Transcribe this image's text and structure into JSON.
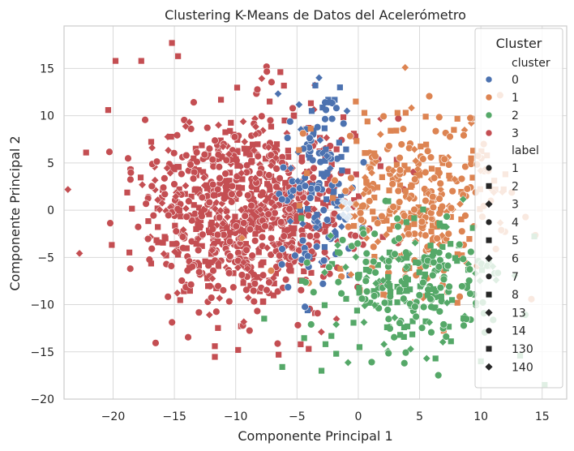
{
  "chart_data": {
    "type": "scatter",
    "title": "Clustering K-Means de Datos del Acelerómetro",
    "xlabel": "Componente Principal 1",
    "ylabel": "Componente Principal 2",
    "xlim": [
      -24,
      17
    ],
    "ylim": [
      -20,
      19.5
    ],
    "xticks": [
      -20,
      -15,
      -10,
      -5,
      0,
      5,
      10,
      15
    ],
    "yticks": [
      -20,
      -15,
      -10,
      -5,
      0,
      5,
      10,
      15
    ],
    "xtick_labels": [
      "−20",
      "−15",
      "−10",
      "−5",
      "0",
      "5",
      "10",
      "15"
    ],
    "ytick_labels": [
      "−20",
      "−15",
      "−10",
      "−5",
      "0",
      "5",
      "10",
      "15"
    ],
    "grid": true,
    "legend": {
      "title": "Cluster",
      "placement": "right",
      "hue_title": "cluster",
      "hue_entries": [
        {
          "name": "0",
          "color": "#4c72b0"
        },
        {
          "name": "1",
          "color": "#dd8452"
        },
        {
          "name": "2",
          "color": "#55a868"
        },
        {
          "name": "3",
          "color": "#c44e52"
        }
      ],
      "style_title": "label",
      "style_entries": [
        {
          "name": "1",
          "marker": "circle"
        },
        {
          "name": "2",
          "marker": "square"
        },
        {
          "name": "3",
          "marker": "diamond"
        },
        {
          "name": "4",
          "marker": "circle"
        },
        {
          "name": "5",
          "marker": "square"
        },
        {
          "name": "6",
          "marker": "diamond"
        },
        {
          "name": "7",
          "marker": "circle"
        },
        {
          "name": "8",
          "marker": "square"
        },
        {
          "name": "13",
          "marker": "diamond"
        },
        {
          "name": "14",
          "marker": "circle"
        },
        {
          "name": "130",
          "marker": "square"
        },
        {
          "name": "140",
          "marker": "diamond"
        }
      ]
    },
    "series": [
      {
        "name": "0",
        "color": "#4c72b0",
        "center": [
          -3,
          3
        ],
        "spread": [
          1.6,
          5.5
        ],
        "count": 140
      },
      {
        "name": "1",
        "color": "#dd8452",
        "center": [
          5,
          1
        ],
        "spread": [
          3.5,
          4.5
        ],
        "count": 320
      },
      {
        "name": "2",
        "color": "#55a868",
        "center": [
          4.5,
          -8
        ],
        "spread": [
          3.8,
          3.5
        ],
        "count": 260
      },
      {
        "name": "3",
        "color": "#c44e52",
        "center": [
          -9,
          0
        ],
        "spread": [
          4.2,
          5.2
        ],
        "count": 900
      }
    ],
    "outliers": [
      {
        "cluster": "3",
        "x": -22.2,
        "y": 6.1,
        "marker": "square"
      },
      {
        "cluster": "3",
        "x": -19.8,
        "y": 15.8,
        "marker": "square"
      },
      {
        "cluster": "3",
        "x": -17.7,
        "y": 15.8,
        "marker": "square"
      },
      {
        "cluster": "3",
        "x": -15.2,
        "y": 17.7,
        "marker": "square"
      },
      {
        "cluster": "3",
        "x": -14.7,
        "y": 16.3,
        "marker": "square"
      },
      {
        "cluster": "3",
        "x": -20.4,
        "y": 10.6,
        "marker": "square"
      },
      {
        "cluster": "3",
        "x": -11.7,
        "y": -14.4,
        "marker": "square"
      },
      {
        "cluster": "3",
        "x": -9.8,
        "y": -14.8,
        "marker": "square"
      },
      {
        "cluster": "3",
        "x": -6.5,
        "y": -15.3,
        "marker": "square"
      },
      {
        "cluster": "3",
        "x": -4.7,
        "y": -14.2,
        "marker": "square"
      },
      {
        "cluster": "2",
        "x": -6.2,
        "y": -16.6,
        "marker": "square"
      },
      {
        "cluster": "2",
        "x": -3.0,
        "y": -17.0,
        "marker": "square"
      },
      {
        "cluster": "2",
        "x": -1.8,
        "y": -15.2,
        "marker": "square"
      },
      {
        "cluster": "2",
        "x": 0.1,
        "y": -14.5,
        "marker": "square"
      },
      {
        "cluster": "2",
        "x": 6.3,
        "y": -15.7,
        "marker": "square"
      },
      {
        "cluster": "2",
        "x": 10.0,
        "y": -16.0,
        "marker": "square"
      },
      {
        "cluster": "2",
        "x": 15.2,
        "y": -18.5,
        "marker": "square"
      },
      {
        "cluster": "2",
        "x": 13.2,
        "y": -15.4,
        "marker": "square"
      },
      {
        "cluster": "2",
        "x": 2.1,
        "y": -14.2,
        "marker": "diamond"
      },
      {
        "cluster": "2",
        "x": -1.8,
        "y": -12.1,
        "marker": "diamond"
      },
      {
        "cluster": "1",
        "x": -0.2,
        "y": 11.5,
        "marker": "square"
      },
      {
        "cluster": "1",
        "x": 0.5,
        "y": 10.3,
        "marker": "square"
      },
      {
        "cluster": "1",
        "x": 3.2,
        "y": 10.3,
        "marker": "square"
      },
      {
        "cluster": "1",
        "x": 5.5,
        "y": 9.9,
        "marker": "square"
      },
      {
        "cluster": "1",
        "x": 7.8,
        "y": 8.5,
        "marker": "square"
      },
      {
        "cluster": "1",
        "x": 10.5,
        "y": 5.8,
        "marker": "square"
      },
      {
        "cluster": "1",
        "x": 12.0,
        "y": 3.8,
        "marker": "square"
      },
      {
        "cluster": "0",
        "x": -3.5,
        "y": 13.2,
        "marker": "square"
      },
      {
        "cluster": "0",
        "x": -3.8,
        "y": 10.5,
        "marker": "square"
      },
      {
        "cluster": "0",
        "x": -2.3,
        "y": 11.4,
        "marker": "square"
      }
    ],
    "center_glyph": {
      "x": -1.0,
      "y": 0.0,
      "color": "#dde8f3"
    }
  }
}
